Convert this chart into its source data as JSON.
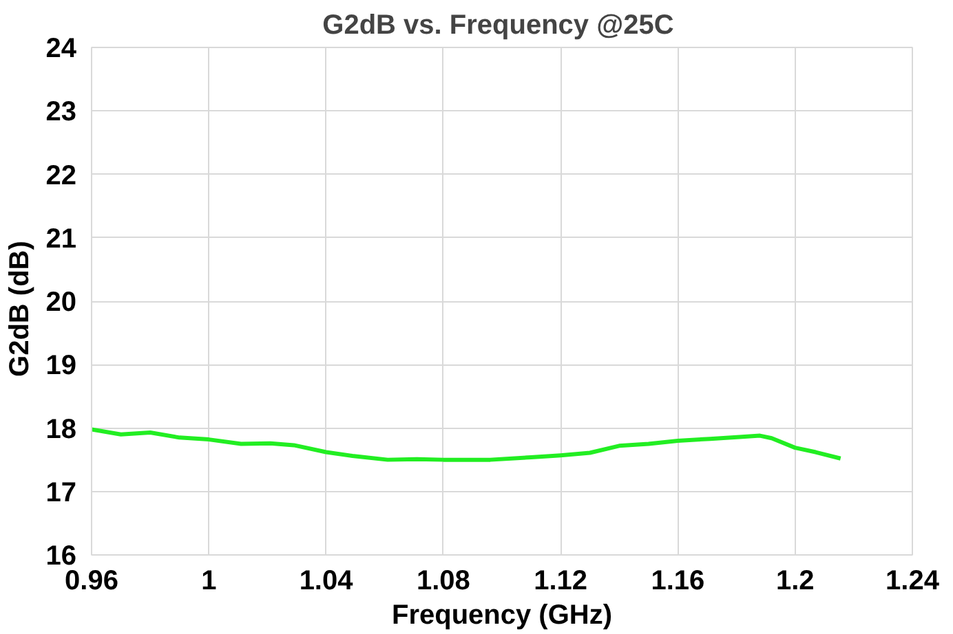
{
  "chart_data": {
    "type": "line",
    "title": "G2dB  vs. Frequency @25C",
    "xlabel": "Frequency (GHz)",
    "ylabel": "G2dB   (dB)",
    "xlim": [
      0.96,
      1.24
    ],
    "xticks": [
      0.96,
      1,
      1.04,
      1.08,
      1.12,
      1.16,
      1.2,
      1.24
    ],
    "ylim": [
      16,
      24
    ],
    "yticks": [
      16,
      17,
      18,
      19,
      20,
      21,
      22,
      23,
      24
    ],
    "grid": true,
    "x": [
      0.96,
      0.97,
      0.98,
      0.99,
      1.0,
      1.011,
      1.021,
      1.029,
      1.04,
      1.049,
      1.061,
      1.071,
      1.08,
      1.096,
      1.11,
      1.12,
      1.13,
      1.14,
      1.15,
      1.16,
      1.171,
      1.181,
      1.188,
      1.192,
      1.2,
      1.207,
      1.2155
    ],
    "series": [
      {
        "color": "#22ee22",
        "values": [
          17.98,
          17.9,
          17.93,
          17.85,
          17.82,
          17.75,
          17.76,
          17.73,
          17.62,
          17.56,
          17.5,
          17.51,
          17.5,
          17.5,
          17.54,
          17.57,
          17.61,
          17.72,
          17.75,
          17.8,
          17.83,
          17.86,
          17.88,
          17.84,
          17.69,
          17.62,
          17.52
        ]
      }
    ]
  }
}
